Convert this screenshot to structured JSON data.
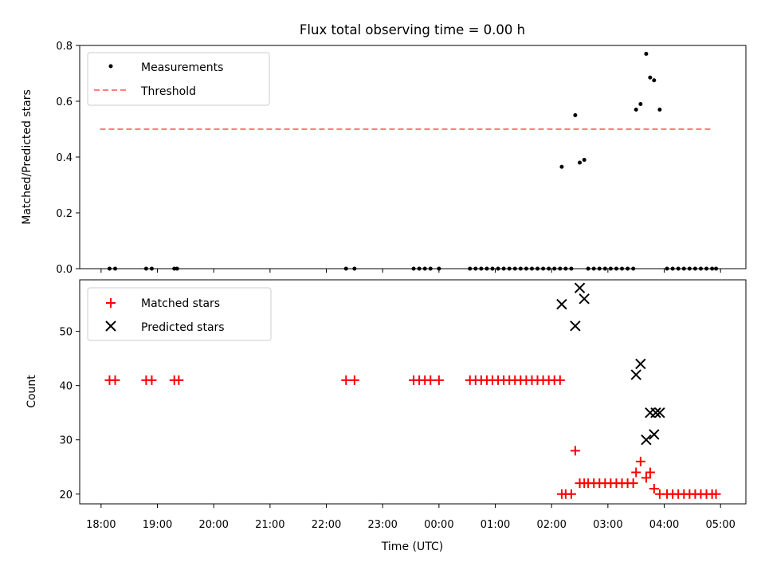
{
  "chart_data": [
    {
      "type": "scatter",
      "title": "Flux total observing time = 0.00 h",
      "ylabel": "Matched/Predicted stars",
      "xlabel": "",
      "x_unit": "hours after 18:00 UTC",
      "ylim": [
        0,
        0.8
      ],
      "yticks": [
        "0.0",
        "0.2",
        "0.4",
        "0.6",
        "0.8"
      ],
      "grid": false,
      "legend_placement": "upper-left",
      "threshold": {
        "name": "Threshold",
        "value": 0.5,
        "x_range": [
          0.15,
          10.85
        ],
        "color": "#ff7f7f"
      },
      "series": [
        {
          "name": "Measurements",
          "marker": "dot",
          "color": "#000000",
          "points": [
            [
              0.15,
              0
            ],
            [
              0.25,
              0
            ],
            [
              0.8,
              0
            ],
            [
              0.9,
              0
            ],
            [
              1.3,
              0
            ],
            [
              1.35,
              0
            ],
            [
              4.35,
              0
            ],
            [
              4.5,
              0
            ],
            [
              5.55,
              0
            ],
            [
              5.65,
              0
            ],
            [
              5.75,
              0
            ],
            [
              5.85,
              0
            ],
            [
              6.0,
              0
            ],
            [
              6.55,
              0
            ],
            [
              6.65,
              0
            ],
            [
              6.75,
              0
            ],
            [
              6.85,
              0
            ],
            [
              6.95,
              0
            ],
            [
              7.05,
              0
            ],
            [
              7.15,
              0
            ],
            [
              7.25,
              0
            ],
            [
              7.35,
              0
            ],
            [
              7.45,
              0
            ],
            [
              7.55,
              0
            ],
            [
              7.65,
              0
            ],
            [
              7.75,
              0
            ],
            [
              7.85,
              0
            ],
            [
              7.95,
              0
            ],
            [
              8.05,
              0
            ],
            [
              8.15,
              0
            ],
            [
              8.25,
              0
            ],
            [
              8.35,
              0
            ],
            [
              8.18,
              0.365
            ],
            [
              8.42,
              0.55
            ],
            [
              8.5,
              0.38
            ],
            [
              8.58,
              0.39
            ],
            [
              8.65,
              0
            ],
            [
              8.75,
              0
            ],
            [
              8.85,
              0
            ],
            [
              8.95,
              0
            ],
            [
              9.05,
              0
            ],
            [
              9.15,
              0
            ],
            [
              9.25,
              0
            ],
            [
              9.35,
              0
            ],
            [
              9.45,
              0
            ],
            [
              9.5,
              0.57
            ],
            [
              9.58,
              0.59
            ],
            [
              9.68,
              0.77
            ],
            [
              9.75,
              0.685
            ],
            [
              9.82,
              0.675
            ],
            [
              9.92,
              0.57
            ],
            [
              10.05,
              0
            ],
            [
              10.15,
              0
            ],
            [
              10.25,
              0
            ],
            [
              10.35,
              0
            ],
            [
              10.45,
              0
            ],
            [
              10.55,
              0
            ],
            [
              10.65,
              0
            ],
            [
              10.75,
              0
            ],
            [
              10.85,
              0
            ],
            [
              10.92,
              0
            ]
          ]
        }
      ]
    },
    {
      "type": "scatter",
      "title": "",
      "ylabel": "Count",
      "xlabel": "Time (UTC)",
      "x_unit": "hours after 18:00 UTC",
      "ylim": [
        18.2,
        59.5
      ],
      "yticks": [
        "20",
        "30",
        "40",
        "50"
      ],
      "xticks": [
        "18:00",
        "19:00",
        "20:00",
        "21:00",
        "22:00",
        "23:00",
        "00:00",
        "01:00",
        "02:00",
        "03:00",
        "04:00",
        "05:00"
      ],
      "xlim": [
        -0.38,
        11.45
      ],
      "grid": false,
      "legend_placement": "upper-left",
      "series": [
        {
          "name": "Matched stars",
          "marker": "plus",
          "color": "#ff0000",
          "points": [
            [
              0.15,
              41
            ],
            [
              0.25,
              41
            ],
            [
              0.8,
              41
            ],
            [
              0.9,
              41
            ],
            [
              1.3,
              41
            ],
            [
              1.38,
              41
            ],
            [
              4.35,
              41
            ],
            [
              4.5,
              41
            ],
            [
              5.55,
              41
            ],
            [
              5.65,
              41
            ],
            [
              5.75,
              41
            ],
            [
              5.85,
              41
            ],
            [
              6.0,
              41
            ],
            [
              6.55,
              41
            ],
            [
              6.65,
              41
            ],
            [
              6.75,
              41
            ],
            [
              6.85,
              41
            ],
            [
              6.95,
              41
            ],
            [
              7.05,
              41
            ],
            [
              7.15,
              41
            ],
            [
              7.25,
              41
            ],
            [
              7.35,
              41
            ],
            [
              7.45,
              41
            ],
            [
              7.55,
              41
            ],
            [
              7.65,
              41
            ],
            [
              7.75,
              41
            ],
            [
              7.85,
              41
            ],
            [
              7.95,
              41
            ],
            [
              8.05,
              41
            ],
            [
              8.15,
              41
            ],
            [
              8.18,
              20
            ],
            [
              8.25,
              20
            ],
            [
              8.35,
              20
            ],
            [
              8.42,
              28
            ],
            [
              8.5,
              22
            ],
            [
              8.58,
              22
            ],
            [
              8.65,
              22
            ],
            [
              8.75,
              22
            ],
            [
              8.85,
              22
            ],
            [
              8.95,
              22
            ],
            [
              9.05,
              22
            ],
            [
              9.15,
              22
            ],
            [
              9.25,
              22
            ],
            [
              9.35,
              22
            ],
            [
              9.45,
              22
            ],
            [
              9.5,
              24
            ],
            [
              9.58,
              26
            ],
            [
              9.68,
              23
            ],
            [
              9.75,
              24
            ],
            [
              9.82,
              21
            ],
            [
              9.92,
              20
            ],
            [
              10.05,
              20
            ],
            [
              10.15,
              20
            ],
            [
              10.25,
              20
            ],
            [
              10.35,
              20
            ],
            [
              10.45,
              20
            ],
            [
              10.55,
              20
            ],
            [
              10.65,
              20
            ],
            [
              10.75,
              20
            ],
            [
              10.85,
              20
            ],
            [
              10.92,
              20
            ]
          ]
        },
        {
          "name": "Predicted stars",
          "marker": "x",
          "color": "#000000",
          "points": [
            [
              8.18,
              55
            ],
            [
              8.42,
              51
            ],
            [
              8.5,
              58
            ],
            [
              8.58,
              56
            ],
            [
              9.5,
              42
            ],
            [
              9.58,
              44
            ],
            [
              9.68,
              30
            ],
            [
              9.75,
              35
            ],
            [
              9.82,
              31
            ],
            [
              9.85,
              35
            ],
            [
              9.92,
              35
            ]
          ]
        }
      ]
    }
  ]
}
